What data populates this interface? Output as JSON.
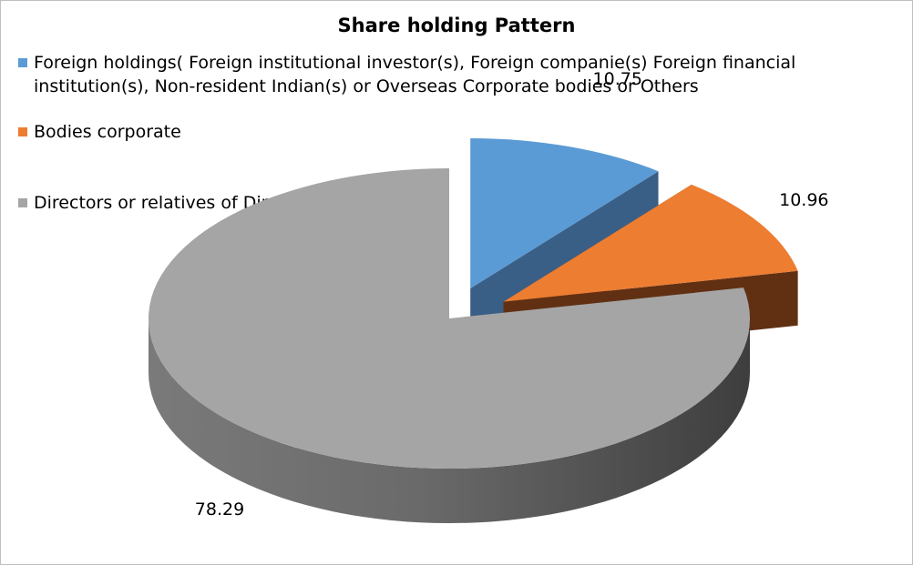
{
  "chart_data": {
    "type": "pie",
    "title": "Share holding Pattern",
    "legend_position": "top-left",
    "slices": [
      {
        "label": "Foreign holdings( Foreign institutional investor(s), Foreign companie(s) Foreign financial institution(s), Non-resident Indian(s) or Overseas Corporate bodies or Others",
        "value": 10.75,
        "value_label": "10.75",
        "color": "#5b9bd5",
        "exploded": true
      },
      {
        "label": "Bodies corporate",
        "value": 10.96,
        "value_label": "10.96",
        "color": "#ed7d31",
        "exploded": true
      },
      {
        "label": "Directors or relatives of Directors",
        "value": 78.29,
        "value_label": "78.29",
        "color": "#a5a5a5",
        "exploded": false
      }
    ]
  }
}
